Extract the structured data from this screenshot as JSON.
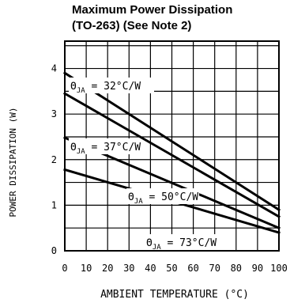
{
  "chart_data": {
    "type": "line",
    "title_lines": [
      "Maximum Power Dissipation",
      "(TO-263) (See Note 2)"
    ],
    "xlabel": "AMBIENT TEMPERATURE (°C)",
    "ylabel": "POWER DISSIPATION (W)",
    "xlim": [
      0,
      100
    ],
    "ylim": [
      0,
      4.6
    ],
    "x_ticks": [
      "0",
      "10",
      "20",
      "30",
      "40",
      "50",
      "60",
      "70",
      "80",
      "90",
      "100"
    ],
    "y_ticks": [
      "0",
      "1",
      "2",
      "3",
      "4"
    ],
    "grid": true,
    "series": [
      {
        "name": "ΘJA = 32°C/W",
        "x": [
          0,
          100
        ],
        "y": [
          3.9,
          0.9
        ],
        "label": {
          "theta": "Θ",
          "sub": "JA",
          "rest": " = 32°C/W"
        }
      },
      {
        "name": "ΘJA = 37°C/W",
        "x": [
          0,
          100
        ],
        "y": [
          3.45,
          0.75
        ],
        "label": {
          "theta": "Θ",
          "sub": "JA",
          "rest": " = 37°C/W"
        }
      },
      {
        "name": "ΘJA = 50°C/W",
        "x": [
          0,
          100
        ],
        "y": [
          2.48,
          0.5
        ],
        "label": {
          "theta": "Θ",
          "sub": "JA",
          "rest": " = 50°C/W"
        }
      },
      {
        "name": "ΘJA = 73°C/W",
        "x": [
          0,
          100
        ],
        "y": [
          1.78,
          0.4
        ],
        "label": {
          "theta": "Θ",
          "sub": "JA",
          "rest": " = 73°C/W"
        }
      }
    ]
  }
}
